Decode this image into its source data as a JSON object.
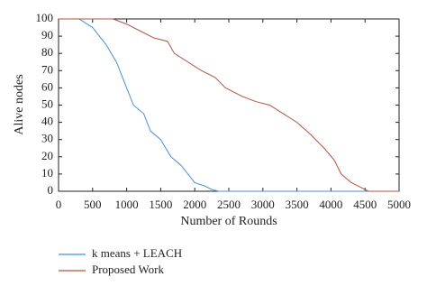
{
  "chart_data": {
    "type": "line",
    "x_label": "Number of Rounds",
    "y_label": "Alive nodes",
    "xlim": [
      0,
      5000
    ],
    "xticks": [
      0,
      500,
      1000,
      1500,
      2000,
      2500,
      3000,
      3500,
      4000,
      4500,
      5000
    ],
    "ylim": [
      0,
      100
    ],
    "yticks": [
      0,
      10,
      20,
      30,
      40,
      50,
      60,
      70,
      80,
      90,
      100
    ],
    "series": [
      {
        "name": "k means + LEACH",
        "color": "#4a8fd4",
        "x": [
          0,
          300,
          500,
          700,
          850,
          1000,
          1100,
          1250,
          1350,
          1500,
          1650,
          1800,
          1900,
          2000,
          2150,
          2250,
          2350,
          5000
        ],
        "values": [
          100,
          100,
          95,
          85,
          75,
          60,
          50,
          45,
          35,
          30,
          20,
          15,
          10,
          5,
          3,
          1,
          0,
          0
        ]
      },
      {
        "name": "Proposed Work",
        "color": "#b0553f",
        "x": [
          0,
          800,
          1000,
          1200,
          1400,
          1600,
          1700,
          1900,
          2100,
          2300,
          2450,
          2700,
          2900,
          3100,
          3300,
          3500,
          3700,
          3900,
          4050,
          4150,
          4300,
          4500,
          4550,
          5000
        ],
        "values": [
          100,
          100,
          97,
          93,
          89,
          87,
          80,
          75,
          70,
          66,
          60,
          55,
          52,
          50,
          45,
          40,
          33,
          25,
          18,
          10,
          5,
          1,
          0,
          0
        ]
      }
    ]
  }
}
